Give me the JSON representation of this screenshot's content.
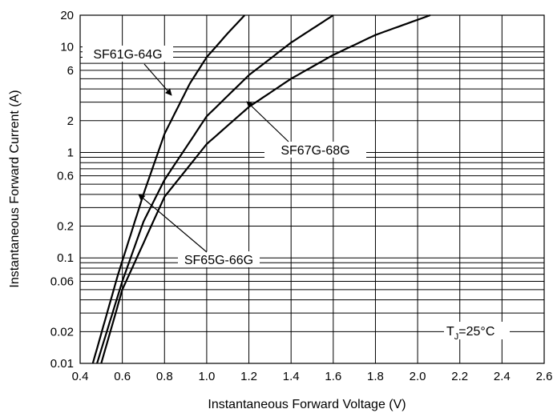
{
  "chart_data": {
    "type": "line",
    "title": "",
    "xlabel": "Instantaneous Forward Voltage (V)",
    "ylabel": "Instantaneous Forward Current (A)",
    "x_scale": "linear",
    "y_scale": "log",
    "xlim": [
      0.4,
      2.6
    ],
    "ylim": [
      0.01,
      20
    ],
    "grid": true,
    "x_ticks": [
      "0.4",
      "0.6",
      "0.8",
      "1.0",
      "1.2",
      "1.4",
      "1.6",
      "1.8",
      "2.0",
      "2.2",
      "2.4",
      "2.6"
    ],
    "y_ticks": [
      {
        "value": 0.01,
        "label": "0.01"
      },
      {
        "value": 0.02,
        "label": "0.02"
      },
      {
        "value": 0.06,
        "label": "0.06"
      },
      {
        "value": 0.1,
        "label": "0.1"
      },
      {
        "value": 0.2,
        "label": "0.2"
      },
      {
        "value": 0.6,
        "label": "0.6"
      },
      {
        "value": 1,
        "label": "1"
      },
      {
        "value": 2,
        "label": "2"
      },
      {
        "value": 6,
        "label": "6"
      },
      {
        "value": 10,
        "label": "10"
      },
      {
        "value": 20,
        "label": "20"
      }
    ],
    "series": [
      {
        "name": "SF61G-64G",
        "x": [
          0.46,
          0.58,
          0.7,
          0.8,
          0.92,
          1.0,
          1.1,
          1.18
        ],
        "y": [
          0.01,
          0.07,
          0.4,
          1.5,
          4.5,
          8,
          13.5,
          20
        ]
      },
      {
        "name": "SF65G-66G",
        "x": [
          0.48,
          0.6,
          0.7,
          0.8,
          0.9,
          1.0,
          1.2,
          1.4,
          1.6
        ],
        "y": [
          0.01,
          0.06,
          0.22,
          0.55,
          1.1,
          2.2,
          5.4,
          11,
          20
        ]
      },
      {
        "name": "SF67G-68G",
        "x": [
          0.5,
          0.6,
          0.8,
          1.0,
          1.2,
          1.4,
          1.6,
          1.8,
          2.06
        ],
        "y": [
          0.01,
          0.05,
          0.38,
          1.2,
          2.7,
          5,
          8.4,
          13,
          20
        ]
      }
    ],
    "annotations": [
      "SF61G-64G",
      "SF65G-66G",
      "SF67G-68G"
    ],
    "condition": {
      "prefix": "T",
      "subscript": "J",
      "suffix": "=25°C"
    }
  }
}
